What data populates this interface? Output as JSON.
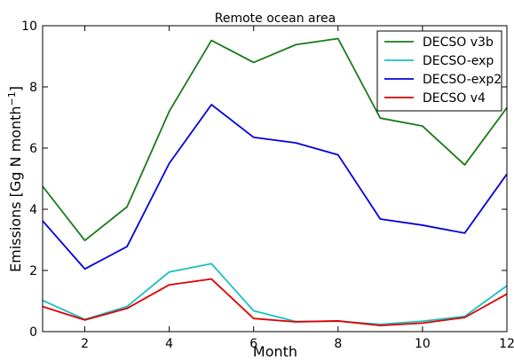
{
  "chart_data": {
    "type": "line",
    "title": "Remote ocean area",
    "xlabel": "Month",
    "ylabel": "Emissions [Gg N month",
    "ylabel_superscript": "−1",
    "ylabel_suffix": "]",
    "xlim": [
      1,
      12
    ],
    "ylim": [
      0,
      10
    ],
    "x_ticks": [
      2,
      4,
      6,
      8,
      10,
      12
    ],
    "y_ticks": [
      0,
      2,
      4,
      6,
      8,
      10
    ],
    "grid": false,
    "legend_position": "top-right",
    "x": [
      1,
      2,
      3,
      4,
      5,
      6,
      7,
      8,
      9,
      10,
      11,
      12
    ],
    "series": [
      {
        "name": "DECSO v3b",
        "color": "#1a7a1a",
        "values": [
          4.75,
          2.98,
          4.08,
          7.2,
          9.52,
          8.8,
          9.38,
          9.58,
          6.98,
          6.72,
          5.45,
          7.32
        ]
      },
      {
        "name": "DECSO-exp",
        "color": "#19c0c0",
        "values": [
          1.02,
          0.4,
          0.82,
          1.95,
          2.22,
          0.68,
          0.33,
          0.34,
          0.24,
          0.34,
          0.5,
          1.5
        ]
      },
      {
        "name": "DECSO-exp2",
        "color": "#0000e0",
        "values": [
          3.62,
          2.05,
          2.78,
          5.5,
          7.42,
          6.35,
          6.17,
          5.78,
          3.68,
          3.48,
          3.22,
          5.15
        ]
      },
      {
        "name": "DECSO v4",
        "color": "#e00000",
        "values": [
          0.82,
          0.38,
          0.76,
          1.53,
          1.72,
          0.43,
          0.32,
          0.35,
          0.2,
          0.28,
          0.46,
          1.23
        ]
      }
    ]
  }
}
